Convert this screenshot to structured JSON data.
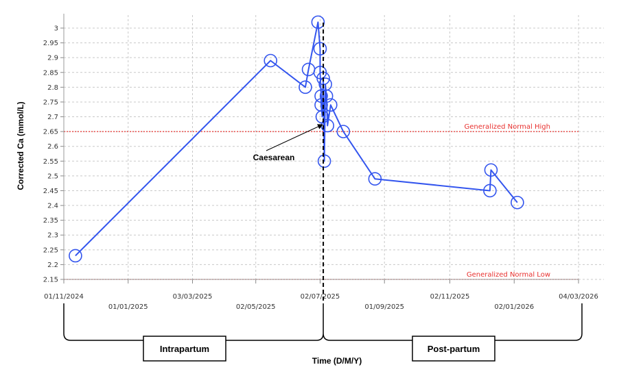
{
  "chart_data": {
    "type": "line",
    "ylabel": "Corrected Ca (mmol/L)",
    "xlabel": "Time (D/M/Y)",
    "ylim": [
      2.15,
      3.0
    ],
    "yticks": [
      2.15,
      2.2,
      2.25,
      2.3,
      2.35,
      2.4,
      2.45,
      2.5,
      2.55,
      2.6,
      2.65,
      2.7,
      2.75,
      2.8,
      2.85,
      2.9,
      2.95,
      3.0
    ],
    "ytick_labels": [
      "2.15",
      "2.2",
      "2.25",
      "2.3",
      "2.35",
      "2.4",
      "2.45",
      "2.5",
      "2.55",
      "2.6",
      "2.65",
      "2.7",
      "2.75",
      "2.8",
      "2.85",
      "2.9",
      "2.95",
      "3"
    ],
    "xlim": [
      "2024-11-01",
      "2026-03-04"
    ],
    "xticks": [
      {
        "date": "2024-11-01",
        "label": "01/11/2024",
        "row": 1
      },
      {
        "date": "2025-01-01",
        "label": "01/01/2025",
        "row": 2
      },
      {
        "date": "2025-03-03",
        "label": "03/03/2025",
        "row": 1
      },
      {
        "date": "2025-05-02",
        "label": "02/05/2025",
        "row": 2
      },
      {
        "date": "2025-07-02",
        "label": "02/07/2025",
        "row": 1
      },
      {
        "date": "2025-09-01",
        "label": "01/09/2025",
        "row": 2
      },
      {
        "date": "2025-11-02",
        "label": "02/11/2025",
        "row": 1
      },
      {
        "date": "2026-01-02",
        "label": "02/01/2026",
        "row": 2
      },
      {
        "date": "2026-03-04",
        "label": "04/03/2026",
        "row": 1
      }
    ],
    "grid": true,
    "series": [
      {
        "color": "#3355ee",
        "points": [
          {
            "x": "2024-11-12",
            "y": 2.23
          },
          {
            "x": "2025-05-16",
            "y": 2.89
          },
          {
            "x": "2025-06-18",
            "y": 2.8
          },
          {
            "x": "2025-06-21",
            "y": 2.86
          },
          {
            "x": "2025-06-30",
            "y": 3.02
          },
          {
            "x": "2025-07-02",
            "y": 2.93
          },
          {
            "x": "2025-07-02",
            "y": 2.85
          },
          {
            "x": "2025-07-03",
            "y": 2.77
          },
          {
            "x": "2025-07-03",
            "y": 2.74
          },
          {
            "x": "2025-07-04",
            "y": 2.7
          },
          {
            "x": "2025-07-05",
            "y": 2.83
          },
          {
            "x": "2025-07-06",
            "y": 2.55
          },
          {
            "x": "2025-07-07",
            "y": 2.81
          },
          {
            "x": "2025-07-08",
            "y": 2.77
          },
          {
            "x": "2025-07-09",
            "y": 2.67
          },
          {
            "x": "2025-07-12",
            "y": 2.74
          },
          {
            "x": "2025-07-24",
            "y": 2.65
          },
          {
            "x": "2025-08-23",
            "y": 2.49
          },
          {
            "x": "2025-12-10",
            "y": 2.45
          },
          {
            "x": "2025-12-11",
            "y": 2.52
          },
          {
            "x": "2026-01-05",
            "y": 2.41
          }
        ]
      }
    ],
    "reference_lines": [
      {
        "value": 2.65,
        "label": "Generalized Normal High",
        "color": "#e8302e"
      },
      {
        "value": 2.15,
        "label": "Generalized Normal Low",
        "color": "#e8302e"
      }
    ],
    "event_line": {
      "x": "2025-07-05",
      "label": "Caesarean"
    },
    "periods": [
      {
        "label": "Intrapartum",
        "start": "2024-11-01",
        "end": "2025-07-05"
      },
      {
        "label": "Post-partum",
        "start": "2025-07-05",
        "end": "2026-03-04"
      }
    ]
  }
}
